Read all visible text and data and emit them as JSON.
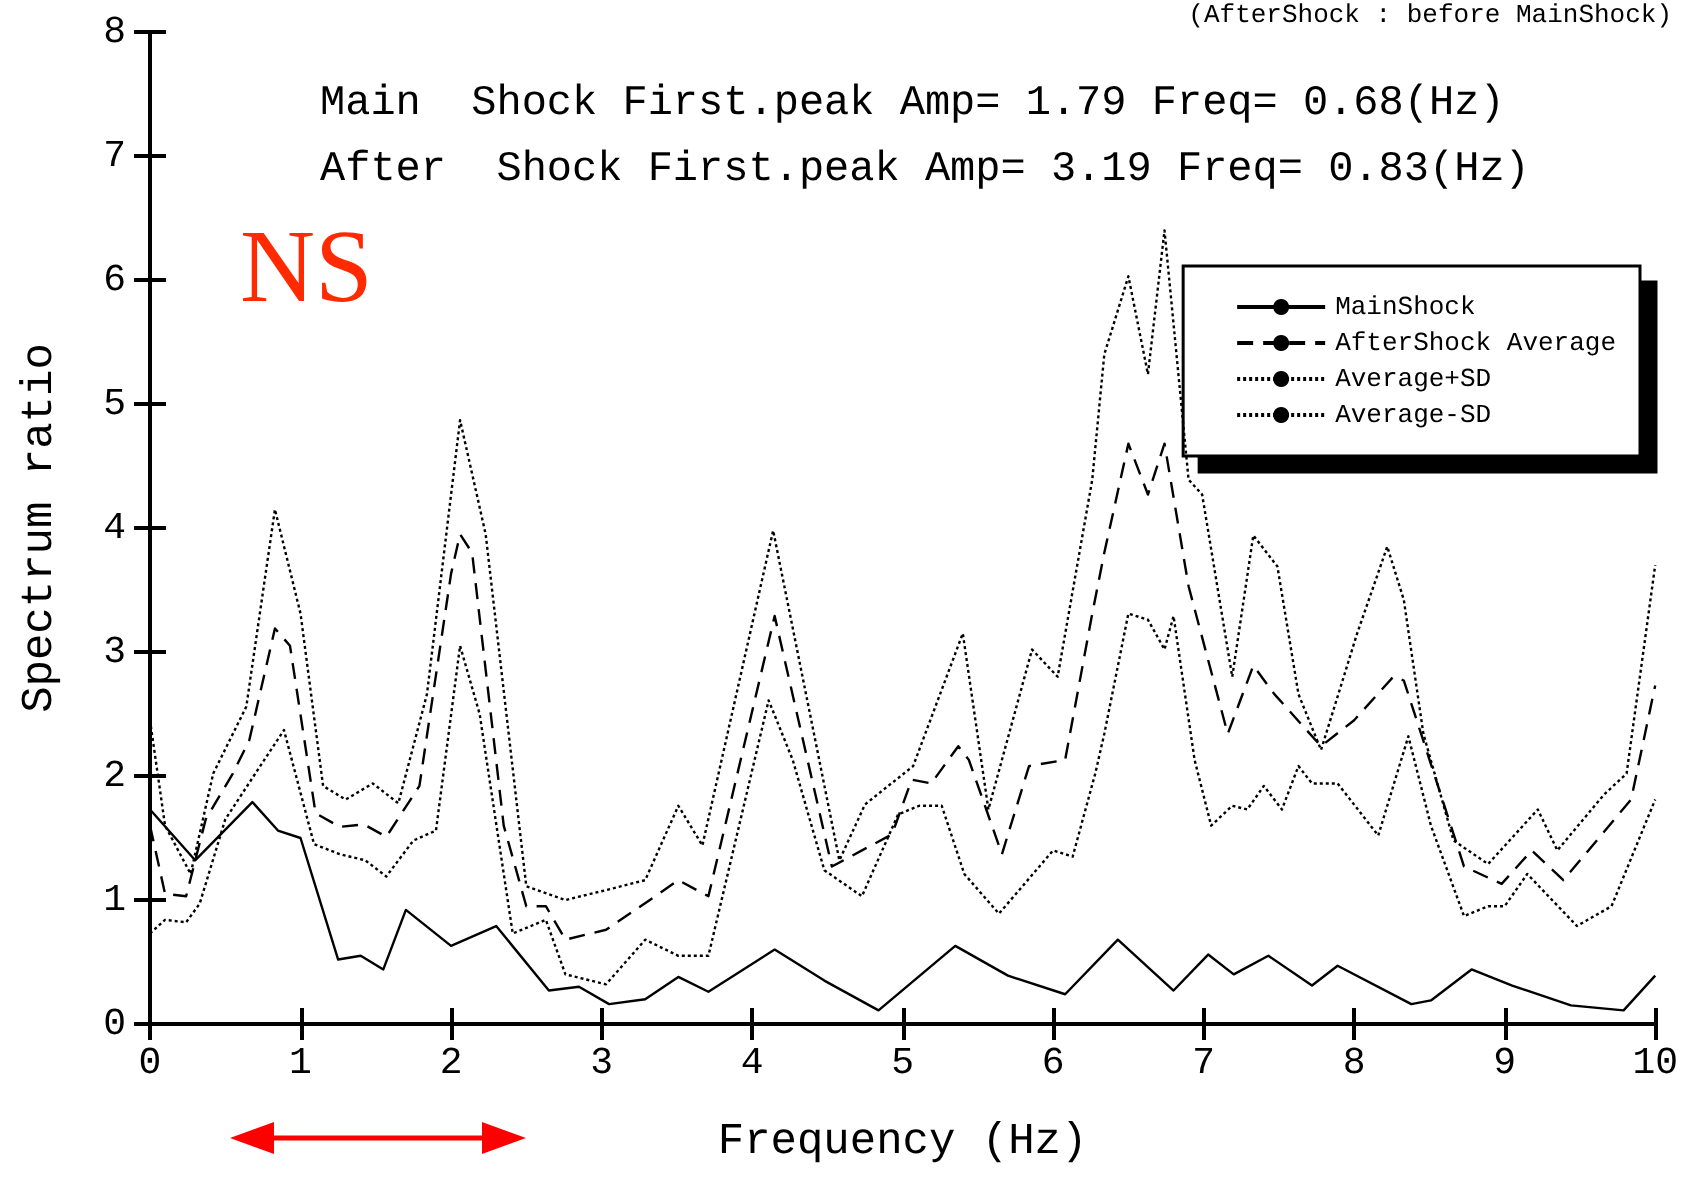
{
  "chart_data": {
    "type": "line",
    "xlabel": "Frequency (Hz)",
    "ylabel": "Spectrum ratio",
    "annotations": [
      "(AfterShock : before MainShock)",
      "Main  Shock First.peak Amp= 1.79 Freq= 0.68(Hz)",
      "After  Shock First.peak Amp= 3.19 Freq= 0.83(Hz)",
      "NS"
    ],
    "xlim": [
      0,
      10
    ],
    "xticks": [
      0,
      1,
      2,
      3,
      4,
      5,
      6,
      7,
      8,
      9,
      10
    ],
    "ylim": [
      0,
      8
    ],
    "yticks": [
      0,
      1,
      2,
      3,
      4,
      5,
      6,
      7,
      8
    ],
    "grid": false,
    "legend": "top right",
    "marker": "none",
    "series": [
      {
        "name": "MainShock",
        "color": "#000000",
        "line_style": "solid",
        "x": [
          0,
          0.3,
          0.68,
          0.85,
          1.0,
          1.25,
          1.4,
          1.55,
          1.7,
          2.0,
          2.3,
          2.65,
          2.85,
          3.05,
          3.29,
          3.51,
          3.71,
          4.15,
          4.48,
          4.84,
          5.35,
          5.7,
          6.08,
          6.43,
          6.8,
          7.03,
          7.2,
          7.43,
          7.72,
          7.89,
          8.38,
          8.51,
          8.78,
          9.05,
          9.44,
          9.79,
          10
        ],
        "values": [
          1.73,
          1.32,
          1.79,
          1.56,
          1.5,
          0.52,
          0.55,
          0.44,
          0.92,
          0.63,
          0.79,
          0.27,
          0.3,
          0.16,
          0.2,
          0.38,
          0.26,
          0.6,
          0.35,
          0.11,
          0.63,
          0.39,
          0.24,
          0.68,
          0.27,
          0.56,
          0.4,
          0.55,
          0.31,
          0.47,
          0.16,
          0.19,
          0.44,
          0.31,
          0.15,
          0.11,
          0.39
        ]
      },
      {
        "name": "AfterShock Average",
        "color": "#000000",
        "line_style": "dashed",
        "x": [
          0,
          0.1,
          0.24,
          0.37,
          0.55,
          0.66,
          0.83,
          0.93,
          1.1,
          1.26,
          1.42,
          1.57,
          1.79,
          2.0,
          2.06,
          2.14,
          2.35,
          2.5,
          2.63,
          2.76,
          3.03,
          3.38,
          3.51,
          3.71,
          4.15,
          4.53,
          4.93,
          5.06,
          5.19,
          5.37,
          5.44,
          5.66,
          5.84,
          6.08,
          6.26,
          6.34,
          6.5,
          6.63,
          6.74,
          6.9,
          7.16,
          7.33,
          7.47,
          7.78,
          8.0,
          8.26,
          8.33,
          8.73,
          8.98,
          9.18,
          9.39,
          9.84,
          10
        ],
        "values": [
          1.6,
          1.05,
          1.03,
          1.65,
          2.02,
          2.29,
          3.19,
          3.05,
          1.7,
          1.59,
          1.61,
          1.51,
          1.92,
          3.63,
          3.95,
          3.8,
          1.6,
          0.95,
          0.95,
          0.68,
          0.76,
          1.05,
          1.16,
          1.03,
          3.29,
          1.27,
          1.53,
          1.97,
          1.94,
          2.24,
          2.13,
          1.37,
          2.08,
          2.13,
          3.31,
          3.8,
          4.68,
          4.27,
          4.68,
          3.53,
          2.34,
          2.89,
          2.66,
          2.24,
          2.45,
          2.8,
          2.77,
          1.27,
          1.13,
          1.4,
          1.16,
          1.81,
          2.73
        ]
      },
      {
        "name": "Average+SD",
        "color": "#000000",
        "line_style": "dotted",
        "x": [
          0,
          0.1,
          0.27,
          0.42,
          0.64,
          0.83,
          1.0,
          1.15,
          1.3,
          1.48,
          1.65,
          1.84,
          2.06,
          2.23,
          2.5,
          2.76,
          3.03,
          3.29,
          3.51,
          3.67,
          4.14,
          4.58,
          4.75,
          5.07,
          5.4,
          5.57,
          5.86,
          6.03,
          6.26,
          6.34,
          6.5,
          6.63,
          6.74,
          6.9,
          6.99,
          7.19,
          7.33,
          7.49,
          7.63,
          7.78,
          8.02,
          8.22,
          8.33,
          8.46,
          8.66,
          8.89,
          9.22,
          9.35,
          9.66,
          9.81,
          10
        ],
        "values": [
          2.45,
          1.6,
          1.21,
          2.02,
          2.56,
          4.15,
          3.31,
          1.92,
          1.81,
          1.94,
          1.78,
          2.66,
          4.87,
          3.95,
          1.11,
          1.0,
          1.08,
          1.16,
          1.76,
          1.44,
          3.98,
          1.32,
          1.77,
          2.08,
          3.15,
          1.73,
          3.02,
          2.8,
          4.39,
          5.4,
          6.03,
          5.24,
          6.4,
          4.39,
          4.27,
          2.8,
          3.94,
          3.69,
          2.66,
          2.21,
          3.15,
          3.85,
          3.42,
          2.34,
          1.48,
          1.29,
          1.73,
          1.4,
          1.85,
          2.02,
          3.7
        ]
      },
      {
        "name": "Average-SD",
        "color": "#000000",
        "line_style": "dotted",
        "x": [
          0,
          0.1,
          0.24,
          0.33,
          0.5,
          0.7,
          0.89,
          1.09,
          1.26,
          1.43,
          1.57,
          1.75,
          1.9,
          2.06,
          2.19,
          2.41,
          2.63,
          2.76,
          3.03,
          3.29,
          3.51,
          3.71,
          4.11,
          4.27,
          4.48,
          4.73,
          4.97,
          5.11,
          5.26,
          5.41,
          5.64,
          5.81,
          6.0,
          6.13,
          6.28,
          6.34,
          6.5,
          6.63,
          6.74,
          6.8,
          6.94,
          7.05,
          7.19,
          7.29,
          7.4,
          7.52,
          7.63,
          7.72,
          7.89,
          8.16,
          8.36,
          8.51,
          8.73,
          8.89,
          9.0,
          9.15,
          9.48,
          9.71,
          10
        ],
        "values": [
          0.73,
          0.84,
          0.82,
          0.97,
          1.65,
          2.02,
          2.37,
          1.45,
          1.37,
          1.32,
          1.19,
          1.48,
          1.56,
          3.05,
          2.5,
          0.73,
          0.84,
          0.4,
          0.32,
          0.68,
          0.55,
          0.55,
          2.61,
          2.13,
          1.24,
          1.03,
          1.69,
          1.76,
          1.76,
          1.21,
          0.89,
          1.13,
          1.4,
          1.35,
          2.02,
          2.34,
          3.31,
          3.26,
          3.02,
          3.29,
          2.13,
          1.6,
          1.76,
          1.73,
          1.92,
          1.73,
          2.08,
          1.94,
          1.94,
          1.52,
          2.32,
          1.6,
          0.87,
          0.95,
          0.95,
          1.21,
          0.79,
          0.95,
          1.81
        ]
      }
    ]
  }
}
